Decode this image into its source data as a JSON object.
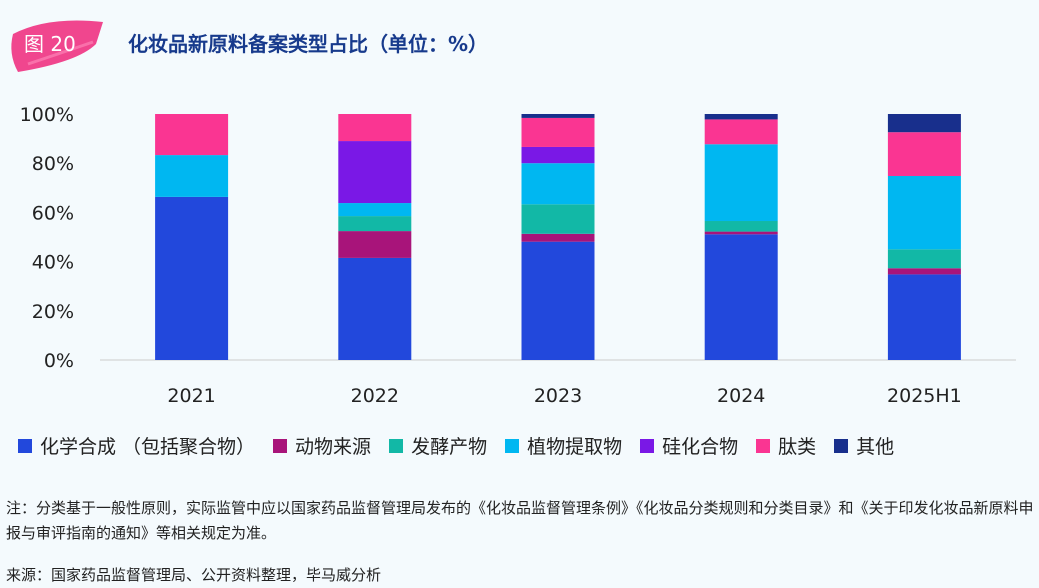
{
  "header": {
    "figure_label": "图 20",
    "title": "化妆品新原料备案类型占比（单位：%）"
  },
  "chart_data": {
    "type": "bar",
    "stacked": true,
    "title": "化妆品新原料备案类型占比（单位：%）",
    "categories": [
      "2021",
      "2022",
      "2023",
      "2024",
      "2025H1"
    ],
    "ylim": [
      0,
      100
    ],
    "yticks": [
      "0%",
      "20%",
      "40%",
      "60%",
      "80%",
      "100%"
    ],
    "legend_position": "bottom",
    "series": [
      {
        "name": "化学合成 （包括聚合物）",
        "color": "#2248dc",
        "values": [
          66.3,
          41.5,
          48.1,
          51.1,
          34.8
        ]
      },
      {
        "name": "动物来源",
        "color": "#a8147a",
        "values": [
          0,
          10.9,
          3.2,
          1.1,
          2.5
        ]
      },
      {
        "name": "发酵产物",
        "color": "#12b8a6",
        "values": [
          0,
          6.1,
          12.0,
          4.3,
          7.7
        ]
      },
      {
        "name": "植物提取物",
        "color": "#00b7f1",
        "values": [
          17.0,
          5.3,
          16.7,
          31.2,
          29.8
        ]
      },
      {
        "name": "硅化合物",
        "color": "#7a18e6",
        "values": [
          0,
          25.2,
          6.6,
          0,
          0
        ]
      },
      {
        "name": "肽类",
        "color": "#fa3592",
        "values": [
          16.7,
          11.0,
          11.8,
          10.1,
          17.8
        ]
      },
      {
        "name": "其他",
        "color": "#182f8c",
        "values": [
          0,
          0,
          1.6,
          2.2,
          7.4
        ]
      }
    ]
  },
  "note": "注：分类基于一般性原则，实际监管中应以国家药品监督管理局发布的《化妆品监督管理条例》《化妆品分类规则和分类目录》和《关于印发化妆品新原料申报与审评指南的通知》等相关规定为准。",
  "source": "来源：国家药品监督管理局、公开资料整理，毕马威分析"
}
